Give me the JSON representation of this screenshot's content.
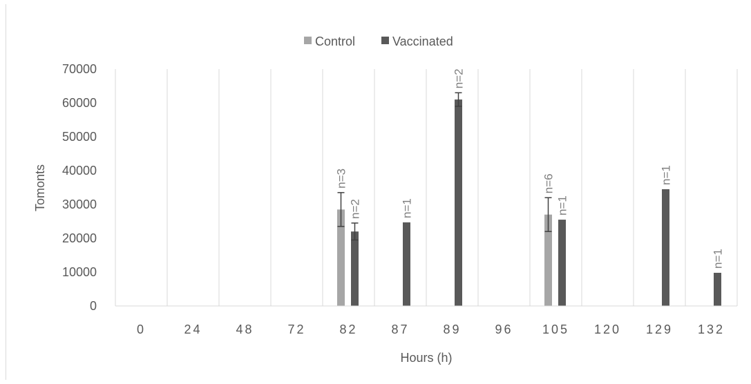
{
  "chart_data": {
    "type": "bar",
    "title": "",
    "xlabel": "Hours (h)",
    "ylabel": "Tomonts",
    "ylim": [
      0,
      70000
    ],
    "yticks": [
      0,
      10000,
      20000,
      30000,
      40000,
      50000,
      60000,
      70000
    ],
    "grid": "vertical category separators",
    "legend": "top-center",
    "categories": [
      "0",
      "24",
      "48",
      "72",
      "82",
      "87",
      "89",
      "96",
      "105",
      "120",
      "129",
      "132"
    ],
    "series": [
      {
        "name": "Control",
        "color": "#a6a6a6",
        "values": [
          null,
          null,
          null,
          null,
          28500,
          null,
          null,
          null,
          27000,
          null,
          null,
          null
        ],
        "error": [
          null,
          null,
          null,
          null,
          5000,
          null,
          null,
          null,
          5000,
          null,
          null,
          null
        ],
        "labels": [
          null,
          null,
          null,
          null,
          "n=3",
          null,
          null,
          null,
          "n=6",
          null,
          null,
          null
        ]
      },
      {
        "name": "Vaccinated",
        "color": "#595959",
        "values": [
          null,
          null,
          null,
          null,
          22000,
          24700,
          61000,
          null,
          25500,
          null,
          34500,
          9800
        ],
        "error": [
          null,
          null,
          null,
          null,
          2500,
          null,
          2000,
          null,
          null,
          null,
          null,
          null
        ],
        "labels": [
          null,
          null,
          null,
          null,
          "n=2",
          "n=1",
          "n=2",
          null,
          "n=1",
          null,
          "n=1",
          "n=1"
        ]
      }
    ]
  }
}
